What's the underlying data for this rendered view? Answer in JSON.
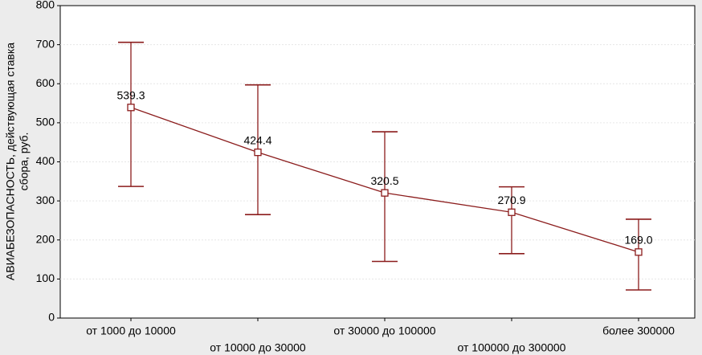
{
  "chart_data": {
    "type": "line",
    "ylabel": [
      "АВИАБЕЗОПАСНОСТЬ, действующая ставка",
      "сбора, руб."
    ],
    "categories": [
      "от 1000 до 10000",
      "от 10000 до 30000",
      "от 30000 до 100000",
      "от 100000 до 300000",
      "более 300000"
    ],
    "values": [
      539.3,
      424.4,
      320.5,
      270.9,
      169.0
    ],
    "value_labels": [
      "539.3",
      "424.4",
      "320.5",
      "270.9",
      "169.0"
    ],
    "lower": [
      337,
      265,
      145,
      165,
      72
    ],
    "upper": [
      706,
      597,
      477,
      336,
      253
    ],
    "color": "#8b1c1c",
    "ylim": [
      0,
      800
    ],
    "yticks": [
      0,
      100,
      200,
      300,
      400,
      500,
      600,
      700,
      800
    ],
    "grid": true
  }
}
